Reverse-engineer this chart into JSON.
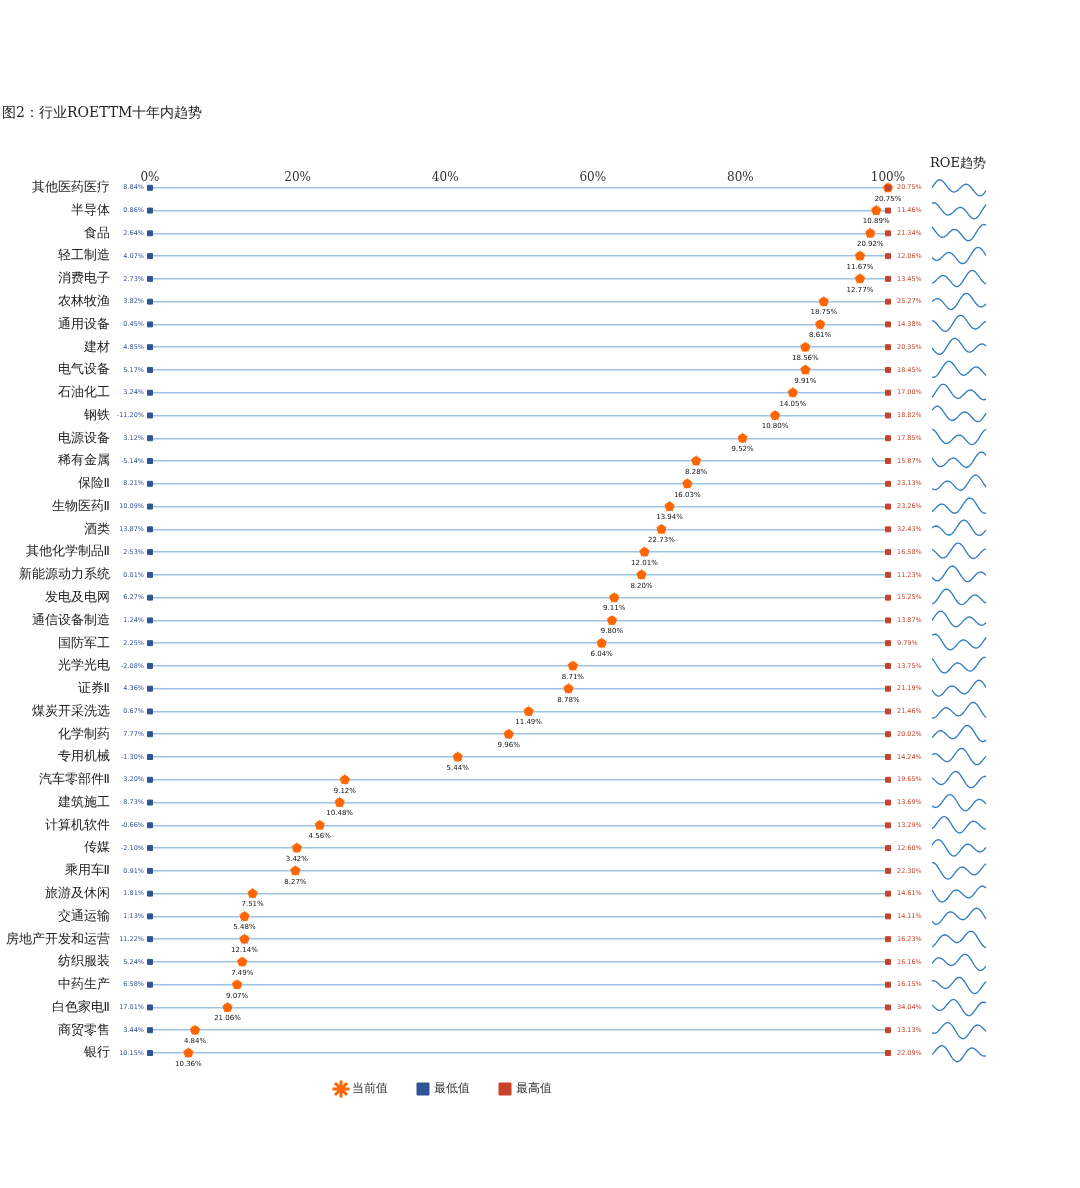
{
  "chart_data": {
    "type": "scatter",
    "title": "图2：行业ROETTM十年内趋势",
    "orientation": "horizontal",
    "categories": [
      "其他医药医疗",
      "半导体",
      "食品",
      "轻工制造",
      "消费电子",
      "农林牧渔",
      "通用设备",
      "建材",
      "电气设备",
      "石油化工",
      "钢铁",
      "电源设备",
      "稀有金属",
      "保险Ⅱ",
      "生物医药Ⅱ",
      "酒类",
      "其他化学制品Ⅱ",
      "新能源动力系统",
      "发电及电网",
      "通信设备制造",
      "国防军工",
      "光学光电",
      "证券Ⅱ",
      "煤炭开采洗选",
      "化学制药",
      "专用机械",
      "汽车零部件Ⅱ",
      "建筑施工",
      "计算机软件",
      "传媒",
      "乘用车Ⅱ",
      "旅游及休闲",
      "交通运输",
      "房地产开发和运营",
      "纺织服装",
      "中药生产",
      "白色家电Ⅱ",
      "商贸零售",
      "银行"
    ],
    "xlim": [
      0,
      100
    ],
    "xticks": [
      {
        "value": 0,
        "label": "0%"
      },
      {
        "value": 20,
        "label": "20%"
      },
      {
        "value": 40,
        "label": "40%"
      },
      {
        "value": 60,
        "label": "60%"
      },
      {
        "value": 80,
        "label": "80%"
      },
      {
        "value": 100,
        "label": "100%"
      }
    ],
    "grid": "y",
    "legend": "bottom",
    "series": [
      {
        "name": "当前值",
        "color": "#ff6600",
        "marker": "star",
        "values": [
          100,
          98.4,
          97.6,
          96.2,
          96.2,
          91.3,
          90.8,
          88.8,
          88.8,
          87.1,
          84.7,
          80.3,
          74.0,
          72.8,
          70.4,
          69.3,
          67.0,
          66.6,
          62.9,
          62.6,
          61.2,
          57.3,
          56.7,
          51.3,
          48.6,
          41.7,
          26.4,
          25.7,
          23.0,
          19.9,
          19.7,
          13.9,
          12.8,
          12.8,
          12.5,
          11.8,
          10.5,
          6.1,
          5.2
        ]
      },
      {
        "name": "最低值",
        "color": "#2f5597",
        "marker": "square",
        "values": [
          0,
          0,
          0,
          0,
          0,
          0,
          0,
          0,
          0,
          0,
          0,
          0,
          0,
          0,
          0,
          0,
          0,
          0,
          0,
          0,
          0,
          0,
          0,
          0,
          0,
          0,
          0,
          0,
          0,
          0,
          0,
          0,
          0,
          0,
          0,
          0,
          0,
          0,
          0
        ]
      },
      {
        "name": "最高值",
        "color": "#c8432a",
        "marker": "square",
        "values": [
          100,
          100,
          100,
          100,
          100,
          100,
          100,
          100,
          100,
          100,
          100,
          100,
          100,
          100,
          100,
          100,
          100,
          100,
          100,
          100,
          100,
          100,
          100,
          100,
          100,
          100,
          100,
          100,
          100,
          100,
          100,
          100,
          100,
          100,
          100,
          100,
          100,
          100,
          100
        ]
      }
    ],
    "annotations": [
      "ROE趋势",
      {
        "text": "20.75%",
        "x": 100,
        "y": "其他医药医疗"
      },
      {
        "text": "10.89%",
        "x": 98.4,
        "y": "半导体"
      },
      {
        "text": "20.92%",
        "x": 97.6,
        "y": "食品"
      },
      {
        "text": "11.67%",
        "x": 96.2,
        "y": "轻工制造"
      },
      {
        "text": "12.77%",
        "x": 96.2,
        "y": "消费电子"
      },
      {
        "text": "18.75%",
        "x": 91.3,
        "y": "农林牧渔"
      },
      {
        "text": "8.61%",
        "x": 90.8,
        "y": "通用设备"
      },
      {
        "text": "18.56%",
        "x": 88.8,
        "y": "建材"
      },
      {
        "text": "9.91%",
        "x": 88.8,
        "y": "电气设备"
      },
      {
        "text": "14.05%",
        "x": 87.1,
        "y": "石油化工"
      },
      {
        "text": "10.80%",
        "x": 84.7,
        "y": "钢铁"
      },
      {
        "text": "9.52%",
        "x": 80.3,
        "y": "电源设备"
      },
      {
        "text": "8.28%",
        "x": 74.0,
        "y": "稀有金属"
      },
      {
        "text": "16.03%",
        "x": 72.8,
        "y": "保险Ⅱ"
      },
      {
        "text": "13.94%",
        "x": 70.4,
        "y": "生物医药Ⅱ"
      },
      {
        "text": "22.73%",
        "x": 69.3,
        "y": "酒类"
      },
      {
        "text": "12.01%",
        "x": 67.0,
        "y": "其他化学制品Ⅱ"
      },
      {
        "text": "8.20%",
        "x": 66.6,
        "y": "新能源动力系统"
      },
      {
        "text": "9.11%",
        "x": 62.9,
        "y": "发电及电网"
      },
      {
        "text": "9.80%",
        "x": 62.6,
        "y": "通信设备制造"
      },
      {
        "text": "6.04%",
        "x": 61.2,
        "y": "国防军工"
      },
      {
        "text": "8.71%",
        "x": 57.3,
        "y": "光学光电"
      },
      {
        "text": "8.78%",
        "x": 56.7,
        "y": "证券Ⅱ"
      },
      {
        "text": "11.49%",
        "x": 51.3,
        "y": "煤炭开采洗选"
      },
      {
        "text": "9.96%",
        "x": 48.6,
        "y": "化学制药"
      },
      {
        "text": "5.44%",
        "x": 41.7,
        "y": "专用机械"
      },
      {
        "text": "9.12%",
        "x": 26.4,
        "y": "汽车零部件Ⅱ"
      },
      {
        "text": "10.48%",
        "x": 25.7,
        "y": "建筑施工"
      },
      {
        "text": "4.56%",
        "x": 23.0,
        "y": "计算机软件"
      },
      {
        "text": "3.42%",
        "x": 19.9,
        "y": "传媒"
      },
      {
        "text": "8.27%",
        "x": 19.7,
        "y": "乘用车Ⅱ"
      },
      {
        "text": "7.51%",
        "x": 13.9,
        "y": "旅游及休闲"
      },
      {
        "text": "5.48%",
        "x": 12.8,
        "y": "交通运输"
      },
      {
        "text": "12.14%",
        "x": 12.8,
        "y": "房地产开发和运营"
      },
      {
        "text": "7.49%",
        "x": 12.5,
        "y": "纺织服装"
      },
      {
        "text": "9.07%",
        "x": 11.8,
        "y": "中药生产"
      },
      {
        "text": "21.06%",
        "x": 10.5,
        "y": "白色家电Ⅱ"
      },
      {
        "text": "4.84%",
        "x": 6.1,
        "y": "商贸零售"
      },
      {
        "text": "10.36%",
        "x": 5.2,
        "y": "银行"
      },
      {
        "text": "8.84%",
        "x": 0,
        "y": "其他医药医疗"
      },
      {
        "text": "0.86%",
        "x": 0,
        "y": "半导体"
      },
      {
        "text": "2.64%",
        "x": 0,
        "y": "食品"
      },
      {
        "text": "4.07%",
        "x": 0,
        "y": "轻工制造"
      },
      {
        "text": "2.73%",
        "x": 0,
        "y": "消费电子"
      },
      {
        "text": "3.82%",
        "x": 0,
        "y": "农林牧渔"
      },
      {
        "text": "0.45%",
        "x": 0,
        "y": "通用设备"
      },
      {
        "text": "4.85%",
        "x": 0,
        "y": "建材"
      },
      {
        "text": "5.17%",
        "x": 0,
        "y": "电气设备"
      },
      {
        "text": "3.24%",
        "x": 0,
        "y": "石油化工"
      },
      {
        "text": "-11.20%",
        "x": 0,
        "y": "钢铁"
      },
      {
        "text": "3.12%",
        "x": 0,
        "y": "电源设备"
      },
      {
        "text": "-5.14%",
        "x": 0,
        "y": "稀有金属"
      },
      {
        "text": "8.21%",
        "x": 0,
        "y": "保险Ⅱ"
      },
      {
        "text": "10.09%",
        "x": 0,
        "y": "生物医药Ⅱ"
      },
      {
        "text": "13.87%",
        "x": 0,
        "y": "酒类"
      },
      {
        "text": "2.53%",
        "x": 0,
        "y": "其他化学制品Ⅱ"
      },
      {
        "text": "0.01%",
        "x": 0,
        "y": "新能源动力系统"
      },
      {
        "text": "6.27%",
        "x": 0,
        "y": "发电及电网"
      },
      {
        "text": "1.24%",
        "x": 0,
        "y": "通信设备制造"
      },
      {
        "text": "2.25%",
        "x": 0,
        "y": "国防军工"
      },
      {
        "text": "-2.08%",
        "x": 0,
        "y": "光学光电"
      },
      {
        "text": "4.36%",
        "x": 0,
        "y": "证券Ⅱ"
      },
      {
        "text": "0.67%",
        "x": 0,
        "y": "煤炭开采洗选"
      },
      {
        "text": "7.77%",
        "x": 0,
        "y": "化学制药"
      },
      {
        "text": "-1.30%",
        "x": 0,
        "y": "专用机械"
      },
      {
        "text": "3.20%",
        "x": 0,
        "y": "汽车零部件Ⅱ"
      },
      {
        "text": "8.73%",
        "x": 0,
        "y": "建筑施工"
      },
      {
        "text": "-0.66%",
        "x": 0,
        "y": "计算机软件"
      },
      {
        "text": "-2.10%",
        "x": 0,
        "y": "传媒"
      },
      {
        "text": "0.91%",
        "x": 0,
        "y": "乘用车Ⅱ"
      },
      {
        "text": "1.81%",
        "x": 0,
        "y": "旅游及休闲"
      },
      {
        "text": "1.13%",
        "x": 0,
        "y": "交通运输"
      },
      {
        "text": "11.22%",
        "x": 0,
        "y": "房地产开发和运营"
      },
      {
        "text": "5.24%",
        "x": 0,
        "y": "纺织服装"
      },
      {
        "text": "6.58%",
        "x": 0,
        "y": "中药生产"
      },
      {
        "text": "17.01%",
        "x": 0,
        "y": "白色家电Ⅱ"
      },
      {
        "text": "3.44%",
        "x": 0,
        "y": "商贸零售"
      },
      {
        "text": "10.15%",
        "x": 0,
        "y": "银行"
      },
      {
        "text": "20.75%",
        "x": 100,
        "y": "其他医药医疗"
      },
      {
        "text": "11.46%",
        "x": 100,
        "y": "半导体"
      },
      {
        "text": "21.34%",
        "x": 100,
        "y": "食品"
      },
      {
        "text": "12.06%",
        "x": 100,
        "y": "轻工制造"
      },
      {
        "text": "13.45%",
        "x": 100,
        "y": "消费电子"
      },
      {
        "text": "25.27%",
        "x": 100,
        "y": "农林牧渔"
      },
      {
        "text": "14.38%",
        "x": 100,
        "y": "通用设备"
      },
      {
        "text": "20.35%",
        "x": 100,
        "y": "建材"
      },
      {
        "text": "18.45%",
        "x": 100,
        "y": "电气设备"
      },
      {
        "text": "17.00%",
        "x": 100,
        "y": "石油化工"
      },
      {
        "text": "18.82%",
        "x": 100,
        "y": "钢铁"
      },
      {
        "text": "17.85%",
        "x": 100,
        "y": "电源设备"
      },
      {
        "text": "15.87%",
        "x": 100,
        "y": "稀有金属"
      },
      {
        "text": "23.13%",
        "x": 100,
        "y": "保险Ⅱ"
      },
      {
        "text": "23.26%",
        "x": 100,
        "y": "生物医药Ⅱ"
      },
      {
        "text": "32.43%",
        "x": 100,
        "y": "酒类"
      },
      {
        "text": "16.58%",
        "x": 100,
        "y": "其他化学制品Ⅱ"
      },
      {
        "text": "11.23%",
        "x": 100,
        "y": "新能源动力系统"
      },
      {
        "text": "15.25%",
        "x": 100,
        "y": "发电及电网"
      },
      {
        "text": "13.87%",
        "x": 100,
        "y": "通信设备制造"
      },
      {
        "text": "9.79%",
        "x": 100,
        "y": "国防军工"
      },
      {
        "text": "13.75%",
        "x": 100,
        "y": "光学光电"
      },
      {
        "text": "21.19%",
        "x": 100,
        "y": "证券Ⅱ"
      },
      {
        "text": "21.46%",
        "x": 100,
        "y": "煤炭开采洗选"
      },
      {
        "text": "20.02%",
        "x": 100,
        "y": "化学制药"
      },
      {
        "text": "14.24%",
        "x": 100,
        "y": "专用机械"
      },
      {
        "text": "19.65%",
        "x": 100,
        "y": "汽车零部件Ⅱ"
      },
      {
        "text": "13.69%",
        "x": 100,
        "y": "建筑施工"
      },
      {
        "text": "13.29%",
        "x": 100,
        "y": "计算机软件"
      },
      {
        "text": "12.60%",
        "x": 100,
        "y": "传媒"
      },
      {
        "text": "22.30%",
        "x": 100,
        "y": "乘用车Ⅱ"
      },
      {
        "text": "14.61%",
        "x": 100,
        "y": "旅游及休闲"
      },
      {
        "text": "14.11%",
        "x": 100,
        "y": "交通运输"
      },
      {
        "text": "16.23%",
        "x": 100,
        "y": "房地产开发和运营"
      },
      {
        "text": "16.16%",
        "x": 100,
        "y": "纺织服装"
      },
      {
        "text": "16.15%",
        "x": 100,
        "y": "中药生产"
      },
      {
        "text": "34.04%",
        "x": 100,
        "y": "白色家电Ⅱ"
      },
      {
        "text": "13.13%",
        "x": 100,
        "y": "商贸零售"
      },
      {
        "text": "22.09%",
        "x": 100,
        "y": "银行"
      }
    ]
  }
}
